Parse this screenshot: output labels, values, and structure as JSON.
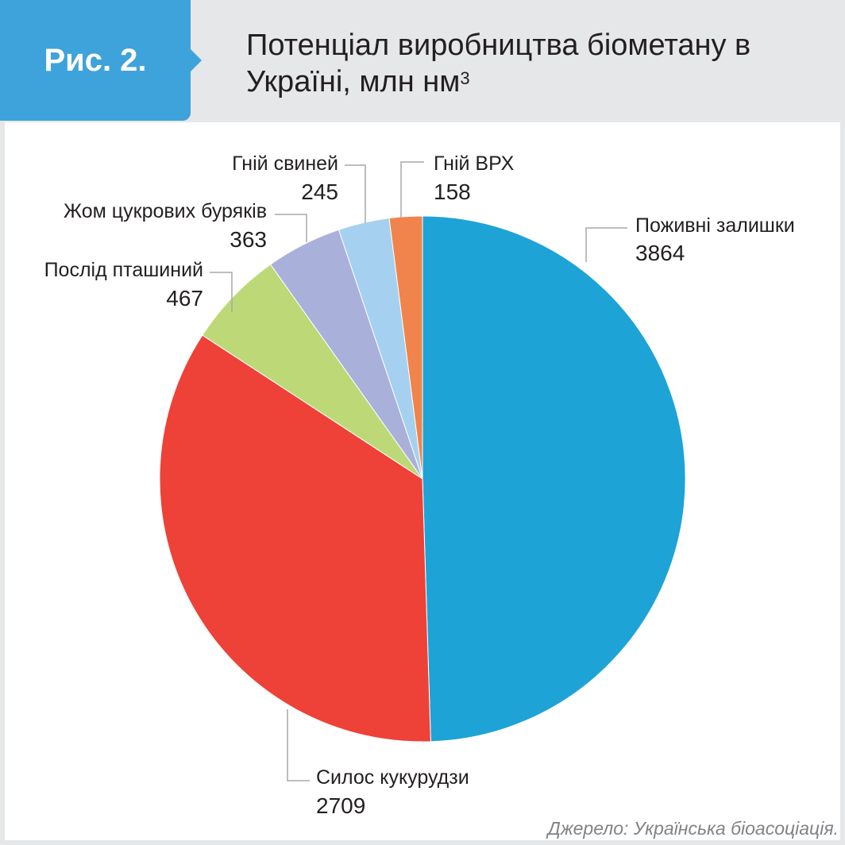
{
  "figure": {
    "label": "Рис. 2.",
    "title": "Потенціал виробництва біометану в Україні, млн нм",
    "title_superscript": "3",
    "source": "Джерело: Українська біоасоціація."
  },
  "colors": {
    "header_bg": "#e6e7e8",
    "badge": "#3fa3db",
    "panel_bg": "#ffffff",
    "leader": "#a7a9ac"
  },
  "chart_data": {
    "type": "pie",
    "start_angle_deg": 0,
    "direction": "clockwise",
    "categories": [
      "Поживні залишки",
      "Силос кукурудзи",
      "Послід пташиний",
      "Жом цукрових буряків",
      "Гній свиней",
      "Гній ВРХ"
    ],
    "values": [
      3864,
      2709,
      467,
      363,
      245,
      158
    ],
    "colors": [
      "#1ea3d6",
      "#ee4138",
      "#bdd877",
      "#a9b1da",
      "#a6d0ef",
      "#f0844c"
    ],
    "labels": [
      {
        "name": "Поживні залишки",
        "value": "3864"
      },
      {
        "name": "Силос кукурудзи",
        "value": "2709"
      },
      {
        "name": "Послід пташиний",
        "value": "467"
      },
      {
        "name": "Жом цукрових буряків",
        "value": "363"
      },
      {
        "name": "Гній свиней",
        "value": "245"
      },
      {
        "name": "Гній ВРХ",
        "value": "158"
      }
    ]
  }
}
